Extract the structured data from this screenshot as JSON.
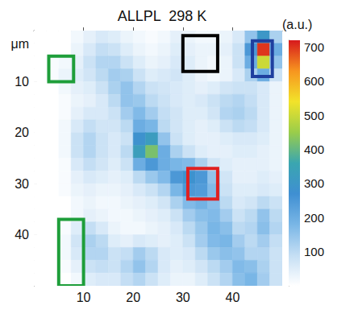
{
  "chart_data": {
    "type": "heatmap",
    "title": "ALLPL  298 K",
    "xlabel": "μm",
    "x": [
      1.25,
      3.75,
      6.25,
      8.75,
      11.25,
      13.75,
      16.25,
      18.75,
      21.25,
      23.75,
      26.25,
      28.75,
      31.25,
      33.75,
      36.25,
      38.75,
      41.25,
      43.75,
      46.25,
      48.75
    ],
    "y": [
      1.25,
      3.75,
      6.25,
      8.75,
      11.25,
      13.75,
      16.25,
      18.75,
      21.25,
      23.75,
      26.25,
      28.75,
      31.25,
      33.75,
      36.25,
      38.75,
      41.25,
      43.75,
      46.25,
      48.75
    ],
    "values": [
      [
        0,
        0,
        0,
        20,
        40,
        60,
        50,
        30,
        20,
        10,
        20,
        40,
        30,
        20,
        20,
        30,
        60,
        150,
        300,
        120
      ],
      [
        0,
        0,
        0,
        30,
        60,
        90,
        80,
        50,
        30,
        20,
        30,
        50,
        40,
        30,
        30,
        40,
        80,
        250,
        700,
        200
      ],
      [
        0,
        10,
        20,
        40,
        80,
        110,
        110,
        80,
        50,
        30,
        40,
        60,
        50,
        30,
        20,
        30,
        80,
        200,
        500,
        150
      ],
      [
        0,
        10,
        30,
        50,
        70,
        100,
        130,
        120,
        80,
        50,
        60,
        70,
        50,
        30,
        20,
        30,
        60,
        120,
        200,
        80
      ],
      [
        0,
        0,
        20,
        40,
        50,
        80,
        120,
        150,
        110,
        80,
        70,
        60,
        50,
        40,
        50,
        70,
        80,
        80,
        60,
        30
      ],
      [
        0,
        0,
        10,
        30,
        40,
        60,
        100,
        150,
        140,
        100,
        80,
        60,
        50,
        60,
        80,
        100,
        110,
        90,
        60,
        30
      ],
      [
        0,
        0,
        10,
        40,
        60,
        60,
        80,
        130,
        170,
        130,
        90,
        70,
        50,
        50,
        70,
        110,
        120,
        100,
        60,
        30
      ],
      [
        0,
        0,
        20,
        60,
        90,
        70,
        70,
        100,
        200,
        180,
        100,
        70,
        50,
        40,
        50,
        80,
        100,
        90,
        60,
        30
      ],
      [
        0,
        0,
        20,
        80,
        110,
        80,
        60,
        80,
        280,
        320,
        150,
        80,
        50,
        40,
        40,
        50,
        60,
        60,
        50,
        30
      ],
      [
        0,
        0,
        20,
        80,
        110,
        80,
        60,
        100,
        330,
        420,
        200,
        120,
        80,
        50,
        40,
        40,
        50,
        50,
        40,
        30
      ],
      [
        0,
        0,
        10,
        60,
        90,
        70,
        50,
        80,
        200,
        250,
        200,
        180,
        170,
        120,
        70,
        50,
        40,
        40,
        40,
        30
      ],
      [
        0,
        0,
        10,
        40,
        60,
        50,
        40,
        50,
        100,
        140,
        170,
        250,
        280,
        250,
        150,
        70,
        40,
        40,
        50,
        40
      ],
      [
        0,
        0,
        10,
        30,
        40,
        30,
        30,
        40,
        60,
        80,
        110,
        180,
        250,
        240,
        170,
        80,
        50,
        50,
        60,
        50
      ],
      [
        0,
        0,
        0,
        20,
        30,
        20,
        20,
        30,
        40,
        50,
        70,
        120,
        170,
        190,
        160,
        100,
        60,
        70,
        100,
        80
      ],
      [
        0,
        0,
        0,
        20,
        40,
        30,
        20,
        20,
        30,
        40,
        50,
        80,
        130,
        160,
        170,
        130,
        80,
        100,
        150,
        100
      ],
      [
        0,
        0,
        10,
        50,
        90,
        60,
        30,
        20,
        20,
        30,
        40,
        60,
        100,
        140,
        180,
        160,
        100,
        110,
        160,
        110
      ],
      [
        0,
        0,
        20,
        70,
        120,
        100,
        50,
        40,
        60,
        50,
        40,
        50,
        80,
        130,
        170,
        180,
        130,
        100,
        130,
        90
      ],
      [
        0,
        0,
        20,
        60,
        110,
        110,
        80,
        90,
        130,
        100,
        60,
        50,
        60,
        100,
        140,
        160,
        150,
        110,
        110,
        80
      ],
      [
        0,
        0,
        10,
        40,
        80,
        90,
        80,
        110,
        150,
        110,
        60,
        40,
        50,
        70,
        100,
        130,
        170,
        160,
        120,
        80
      ],
      [
        0,
        0,
        0,
        20,
        50,
        60,
        60,
        90,
        110,
        80,
        50,
        30,
        30,
        50,
        80,
        110,
        160,
        180,
        130,
        80
      ]
    ],
    "xlim": [
      0,
      50
    ],
    "ylim": [
      0,
      50
    ],
    "xticks": [
      10,
      20,
      30,
      40
    ],
    "yticks": [
      10,
      20,
      30,
      40
    ],
    "colorbar": {
      "label": "(a.u.)",
      "range": [
        0,
        720
      ],
      "ticks": [
        100,
        200,
        300,
        400,
        500,
        600,
        700
      ],
      "colors": [
        "#ffffff",
        "#c4def4",
        "#79b6e6",
        "#3f8fd2",
        "#3aa6b0",
        "#9acd4a",
        "#f2e32a",
        "#f7951f",
        "#d7191c"
      ]
    },
    "regions": [
      {
        "color": "#1e9e3a",
        "x": [
          3,
          8
        ],
        "y": [
          5,
          10
        ]
      },
      {
        "color": "#000000",
        "x": [
          30,
          37
        ],
        "y": [
          1,
          8
        ]
      },
      {
        "color": "#1f3f9f",
        "x": [
          44,
          48
        ],
        "y": [
          2,
          9
        ]
      },
      {
        "color": "#e02020",
        "x": [
          31,
          37
        ],
        "y": [
          27,
          33
        ]
      },
      {
        "color": "#1e9e3a",
        "x": [
          5,
          10
        ],
        "y": [
          37,
          50
        ]
      }
    ]
  }
}
